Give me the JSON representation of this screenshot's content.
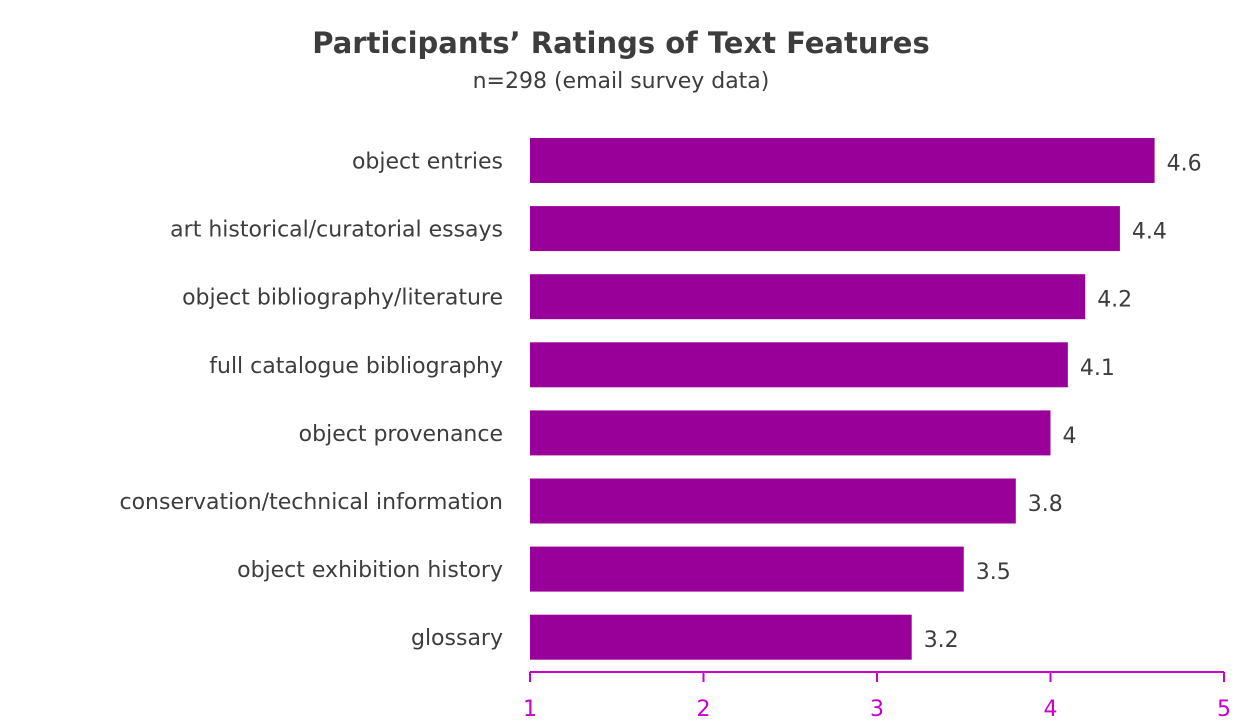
{
  "chart_data": {
    "type": "bar",
    "orientation": "horizontal",
    "title": "Participants’ Ratings of Text Features",
    "subtitle": "n=298 (email survey data)",
    "categories": [
      "object entries",
      "art historical/curatorial essays",
      "object bibliography/literature",
      "full catalogue bibliography",
      "object provenance",
      "conservation/technical information",
      "object exhibition history",
      "glossary"
    ],
    "values": [
      4.6,
      4.4,
      4.2,
      4.1,
      4,
      3.8,
      3.5,
      3.2
    ],
    "value_labels": [
      "4.6",
      "4.4",
      "4.2",
      "4.1",
      "4",
      "3.8",
      "3.5",
      "3.2"
    ],
    "xlim": [
      1,
      5
    ],
    "x_ticks": [
      "1",
      "2",
      "3",
      "4",
      "5"
    ],
    "grid": false,
    "legend": "none",
    "colors": {
      "bar": "#990099",
      "axis": "#cc00cc",
      "text": "#3d3d3d"
    }
  }
}
